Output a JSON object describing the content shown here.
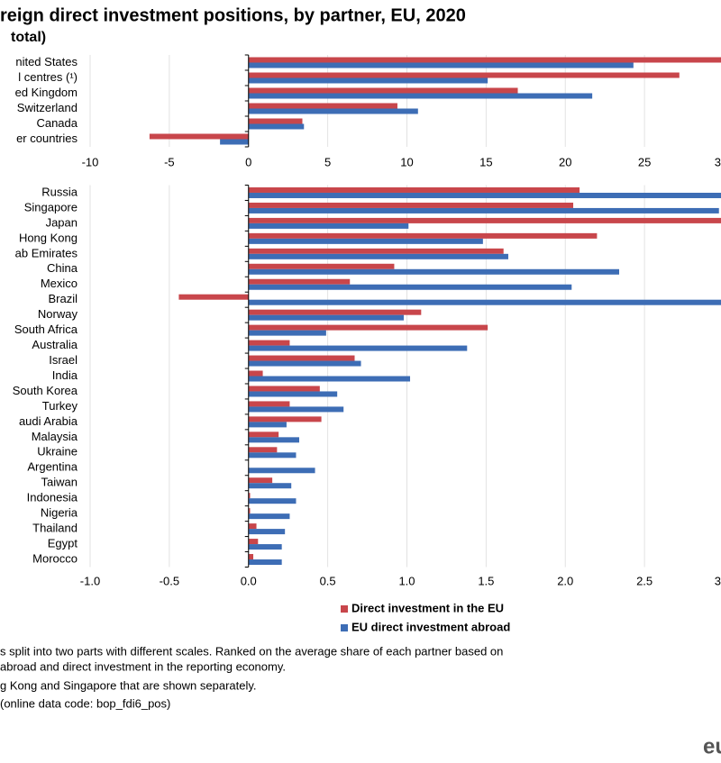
{
  "title": "reign direct investment positions, by partner, EU, 2020",
  "subtitle": "total)",
  "chart_data": [
    {
      "type": "bar",
      "orientation": "horizontal",
      "categories": [
        "nited States",
        "l centres (¹)",
        "ed Kingdom",
        "Switzerland",
        "Canada",
        "er countries"
      ],
      "series": [
        {
          "color": "#c8464b",
          "values": [
            31,
            27.2,
            17.0,
            9.4,
            3.4,
            -6.25
          ]
        },
        {
          "color": "#3d6db5",
          "values": [
            24.3,
            15.1,
            21.7,
            10.7,
            3.5,
            -1.8
          ]
        }
      ],
      "xlim": [
        -10,
        30
      ],
      "xticks": [
        -10,
        -5,
        0,
        5,
        10,
        15,
        20,
        25,
        {
          "value": 30,
          "label": "3"
        }
      ],
      "grid": true
    },
    {
      "type": "bar",
      "orientation": "horizontal",
      "categories": [
        "Russia",
        "Singapore",
        "Japan",
        "Hong Kong",
        "ab Emirates",
        "China",
        "Mexico",
        "Brazil",
        "Norway",
        "South Africa",
        "Australia",
        "Israel",
        "India",
        "South Korea",
        "Turkey",
        "audi Arabia",
        "Malaysia",
        "Ukraine",
        "Argentina",
        "Taiwan",
        "Indonesia",
        "Nigeria",
        "Thailand",
        "Egypt",
        "Morocco"
      ],
      "series": [
        {
          "name": "Direct investment in the EU",
          "color": "#c8464b",
          "values": [
            2.09,
            2.05,
            3.1,
            2.2,
            1.61,
            0.92,
            0.64,
            -0.44,
            1.09,
            1.51,
            0.26,
            0.67,
            0.09,
            0.45,
            0.26,
            0.46,
            0.19,
            0.18,
            0.0,
            0.15,
            0.01,
            0.01,
            0.05,
            0.06,
            0.03
          ]
        },
        {
          "name": "EU direct investment abroad",
          "color": "#3d6db5",
          "values": [
            3.1,
            2.97,
            1.01,
            1.48,
            1.64,
            2.34,
            2.04,
            3.1,
            0.98,
            0.49,
            1.38,
            0.71,
            1.02,
            0.56,
            0.6,
            0.24,
            0.32,
            0.3,
            0.42,
            0.27,
            0.3,
            0.26,
            0.23,
            0.21,
            0.21
          ]
        }
      ],
      "xlim": [
        -1,
        3
      ],
      "xticks": [
        {
          "value": -1,
          "label": "-1.0"
        },
        {
          "value": -0.5,
          "label": "-0.5"
        },
        {
          "value": 0,
          "label": "0.0"
        },
        0.5,
        {
          "value": 1,
          "label": "1.0"
        },
        1.5,
        {
          "value": 2,
          "label": "2.0"
        },
        2.5,
        {
          "value": 3,
          "label": "3"
        }
      ],
      "grid": true
    }
  ],
  "notes": [
    "s split into two parts with different scales. Ranked on the average share of each partner based on",
    " abroad and direct investment in the reporting economy.",
    "g Kong and Singapore that are shown separately.",
    " (online data code: bop_fdi6_pos)"
  ],
  "logo": "eu"
}
